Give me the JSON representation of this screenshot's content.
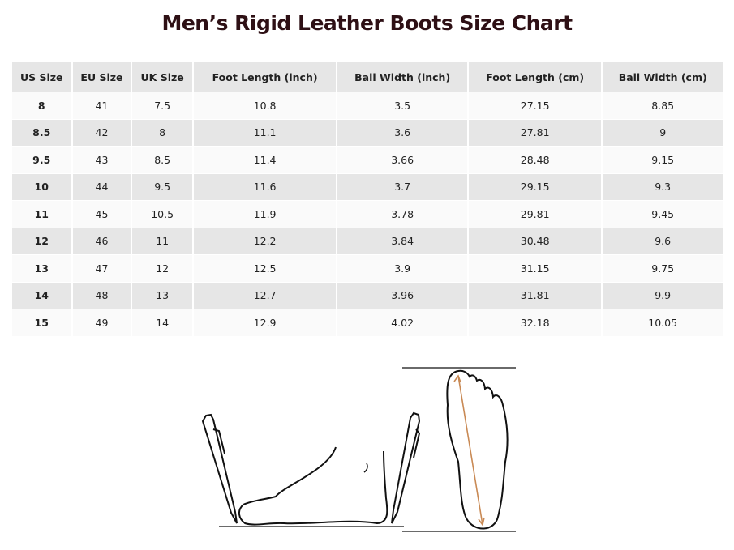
{
  "title": "Men’s Rigid Leather Boots Size Chart",
  "headers": [
    "US Size",
    "EU Size",
    "UK Size",
    "Foot Length (inch)",
    "Ball Width (inch)",
    "Foot Length (cm)",
    "Ball Width (cm)"
  ],
  "rows": [
    [
      "8",
      "41",
      "7.5",
      "10.8",
      "3.5",
      "27.15",
      "8.85"
    ],
    [
      "8.5",
      "42",
      "8",
      "11.1",
      "3.6",
      "27.81",
      "9"
    ],
    [
      "9.5",
      "43",
      "8.5",
      "11.4",
      "3.66",
      "28.48",
      "9.15"
    ],
    [
      "10",
      "44",
      "9.5",
      "11.6",
      "3.7",
      "29.15",
      "9.3"
    ],
    [
      "11",
      "45",
      "10.5",
      "11.9",
      "3.78",
      "29.81",
      "9.45"
    ],
    [
      "12",
      "46",
      "11",
      "12.2",
      "3.84",
      "30.48",
      "9.6"
    ],
    [
      "13",
      "47",
      "12",
      "12.5",
      "3.9",
      "31.15",
      "9.75"
    ],
    [
      "14",
      "48",
      "13",
      "12.7",
      "3.96",
      "31.81",
      "9.9"
    ],
    [
      "15",
      "49",
      "14",
      "12.9",
      "4.02",
      "32.18",
      "10.05"
    ]
  ],
  "colors": {
    "title": "#2e1015",
    "arrow": "#c98a55"
  }
}
